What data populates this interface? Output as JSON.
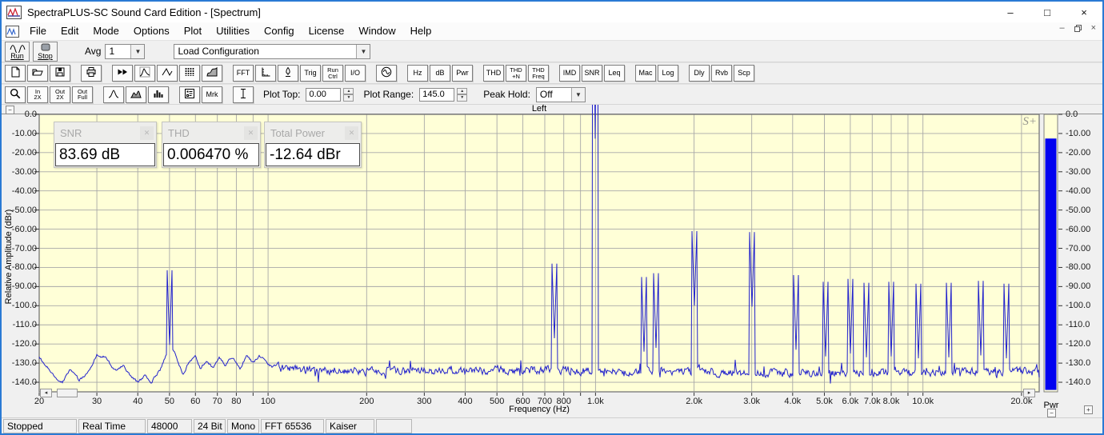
{
  "window": {
    "title": "SpectraPLUS-SC Sound Card Edition - [Spectrum]",
    "controls": [
      {
        "name": "minimize-button",
        "glyph": "–"
      },
      {
        "name": "maximize-button",
        "glyph": "□"
      },
      {
        "name": "close-button",
        "glyph": "×"
      }
    ]
  },
  "menu": {
    "items": [
      "File",
      "Edit",
      "Mode",
      "Options",
      "Plot",
      "Utilities",
      "Config",
      "License",
      "Window",
      "Help"
    ]
  },
  "toolbar_main": {
    "run_label": "Run",
    "stop_label": "Stop",
    "avg_label": "Avg",
    "avg_value": "1",
    "config_value": "Load Configuration"
  },
  "toolbar_icons": {
    "buttons": [
      {
        "name": "new-file-button",
        "icon": "doc"
      },
      {
        "name": "open-file-button",
        "icon": "folder"
      },
      {
        "name": "save-button",
        "icon": "floppy"
      },
      {
        "sep": true
      },
      {
        "name": "print-button",
        "icon": "printer"
      },
      {
        "sep": true
      },
      {
        "name": "fast-forward-button",
        "icon": "ffwd"
      },
      {
        "name": "spectrum-view-button",
        "icon": "spectrum"
      },
      {
        "name": "time-series-view-button",
        "icon": "waveform"
      },
      {
        "name": "spectrogram-view-button",
        "icon": "spectrogram"
      },
      {
        "name": "surface-view-button",
        "icon": "surface"
      },
      {
        "sep": true
      },
      {
        "name": "fft-settings-button",
        "label": "FFT"
      },
      {
        "name": "scaling-button",
        "icon": "ruler"
      },
      {
        "name": "calibration-button",
        "icon": "calib"
      },
      {
        "name": "trigger-button",
        "label": "Trig"
      },
      {
        "name": "run-control-button",
        "label": "Run\nCtrl"
      },
      {
        "name": "io-device-button",
        "label": "I/O"
      },
      {
        "sep": true
      },
      {
        "name": "signal-generator-button",
        "icon": "sine"
      },
      {
        "sep": true
      },
      {
        "name": "units-hz-button",
        "label": "Hz"
      },
      {
        "name": "units-db-button",
        "label": "dB"
      },
      {
        "name": "total-power-button",
        "label": "Pwr"
      },
      {
        "sep": true
      },
      {
        "name": "thd-button",
        "label": "THD"
      },
      {
        "name": "thd-plus-n-button",
        "label": "THD\n+N"
      },
      {
        "name": "thd-freq-button",
        "label": "THD\nFreq"
      },
      {
        "sep": true
      },
      {
        "name": "imd-button",
        "label": "IMD"
      },
      {
        "name": "snr-button",
        "label": "SNR"
      },
      {
        "name": "leq-button",
        "label": "Leq"
      },
      {
        "sep": true
      },
      {
        "name": "macro-button",
        "label": "Mac"
      },
      {
        "name": "log-button",
        "label": "Log"
      },
      {
        "sep": true
      },
      {
        "name": "delay-button",
        "label": "Dly"
      },
      {
        "name": "reverb-button",
        "label": "Rvb"
      },
      {
        "name": "scope-button",
        "label": "Scp"
      }
    ]
  },
  "toolbar_plot": {
    "buttons": [
      {
        "name": "zoom-button",
        "icon": "magnifier"
      },
      {
        "name": "zoom-in-2x-button",
        "label": "In\n2X"
      },
      {
        "name": "zoom-out-2x-button",
        "label": "Out\n2X"
      },
      {
        "name": "zoom-out-full-button",
        "label": "Out\nFull"
      },
      {
        "sep": true
      },
      {
        "name": "line-plot-button",
        "icon": "peak"
      },
      {
        "name": "filled-plot-button",
        "icon": "fillcurve"
      },
      {
        "name": "bar-plot-button",
        "icon": "bars"
      },
      {
        "sep": true
      },
      {
        "name": "legend-button",
        "icon": "legend"
      },
      {
        "name": "marker-button",
        "label": "Mrk"
      },
      {
        "sep": true
      },
      {
        "name": "cursor-button",
        "icon": "ibeam"
      }
    ],
    "plot_top_label": "Plot Top:",
    "plot_top_value": "0.00",
    "plot_range_label": "Plot Range:",
    "plot_range_value": "145.0",
    "peak_hold_label": "Peak Hold:",
    "peak_hold_value": "Off"
  },
  "overlays": [
    {
      "name": "snr-readout",
      "title": "SNR",
      "value": "83.69 dB"
    },
    {
      "name": "thd-readout",
      "title": "THD",
      "value": "0.006470 %"
    },
    {
      "name": "total-power-readout",
      "title": "Total Power",
      "value": "-12.64 dBr"
    }
  ],
  "plot": {
    "channel_label": "Left",
    "watermark": "S+",
    "ylabel": "Relative Amplitude (dBr)",
    "xlabel": "Frequency (Hz)",
    "pwr_label": "Pwr"
  },
  "chart_data": {
    "type": "line",
    "title": "Left",
    "xlabel": "Frequency (Hz)",
    "ylabel": "Relative Amplitude (dBr)",
    "xscale": "log",
    "xlim": [
      20,
      22500
    ],
    "ylim": [
      -145,
      0
    ],
    "grid": true,
    "legend_position": "none",
    "y_ticks": [
      {
        "v": 0,
        "t": "0.0"
      },
      {
        "v": -10,
        "t": "-10.00"
      },
      {
        "v": -20,
        "t": "-20.00"
      },
      {
        "v": -30,
        "t": "-30.00"
      },
      {
        "v": -40,
        "t": "-40.00"
      },
      {
        "v": -50,
        "t": "-50.00"
      },
      {
        "v": -60,
        "t": "-60.00"
      },
      {
        "v": -70,
        "t": "-70.00"
      },
      {
        "v": -80,
        "t": "-80.00"
      },
      {
        "v": -90,
        "t": "-90.00"
      },
      {
        "v": -100,
        "t": "-100.0"
      },
      {
        "v": -110,
        "t": "-110.0"
      },
      {
        "v": -120,
        "t": "-120.0"
      },
      {
        "v": -130,
        "t": "-130.0"
      },
      {
        "v": -140,
        "t": "-140.0"
      }
    ],
    "x_ticks": [
      {
        "v": 20,
        "t": "20"
      },
      {
        "v": 30,
        "t": "30"
      },
      {
        "v": 40,
        "t": "40"
      },
      {
        "v": 50,
        "t": "50"
      },
      {
        "v": 60,
        "t": "60"
      },
      {
        "v": 70,
        "t": "70"
      },
      {
        "v": 80,
        "t": "80"
      },
      {
        "v": 100,
        "t": "100"
      },
      {
        "v": 200,
        "t": "200"
      },
      {
        "v": 300,
        "t": "300"
      },
      {
        "v": 400,
        "t": "400"
      },
      {
        "v": 500,
        "t": "500"
      },
      {
        "v": 600,
        "t": "600"
      },
      {
        "v": 700,
        "t": "700"
      },
      {
        "v": 800,
        "t": "800"
      },
      {
        "v": 1000,
        "t": "1.0k"
      },
      {
        "v": 2000,
        "t": "2.0k"
      },
      {
        "v": 3000,
        "t": "3.0k"
      },
      {
        "v": 4000,
        "t": "4.0k"
      },
      {
        "v": 5000,
        "t": "5.0k"
      },
      {
        "v": 6000,
        "t": "6.0k"
      },
      {
        "v": 7000,
        "t": "7.0k"
      },
      {
        "v": 8000,
        "t": "8.0k"
      },
      {
        "v": 10000,
        "t": "10.0k"
      },
      {
        "v": 20000,
        "t": "20.0k"
      }
    ],
    "x_gridlines": [
      20,
      30,
      40,
      50,
      60,
      70,
      80,
      90,
      100,
      200,
      300,
      400,
      500,
      600,
      700,
      800,
      900,
      1000,
      2000,
      3000,
      4000,
      5000,
      6000,
      7000,
      8000,
      9000,
      10000,
      20000
    ],
    "main_tone_hz": 1000,
    "peaks": [
      [
        50,
        -120.5
      ],
      [
        747,
        -117
      ],
      [
        1000,
        -12.7
      ],
      [
        1410,
        -124
      ],
      [
        1530,
        -122
      ],
      [
        2000,
        -100
      ],
      [
        3000,
        -100.5
      ],
      [
        4100,
        -123
      ],
      [
        5050,
        -126.5
      ],
      [
        6000,
        -125
      ],
      [
        6700,
        -127
      ],
      [
        8000,
        -126.5
      ],
      [
        9700,
        -127.5
      ],
      [
        12000,
        -127
      ],
      [
        15000,
        -126
      ],
      [
        18000,
        -127.5
      ]
    ],
    "lf_envelope": [
      [
        20,
        -127
      ],
      [
        22,
        -136
      ],
      [
        23.5,
        -140
      ],
      [
        25,
        -133
      ],
      [
        26.5,
        -139
      ],
      [
        28.5,
        -134
      ],
      [
        30,
        -126
      ],
      [
        32,
        -127
      ],
      [
        34,
        -134
      ],
      [
        36,
        -131
      ],
      [
        38,
        -137
      ],
      [
        40,
        -140
      ],
      [
        42,
        -137
      ],
      [
        44,
        -140
      ],
      [
        47,
        -133
      ],
      [
        50,
        -120.5
      ],
      [
        52,
        -125
      ],
      [
        55,
        -136
      ],
      [
        57,
        -130
      ],
      [
        60,
        -127
      ],
      [
        62,
        -133
      ],
      [
        65,
        -128
      ],
      [
        68,
        -133
      ],
      [
        71,
        -127
      ],
      [
        74,
        -131
      ],
      [
        78,
        -127
      ],
      [
        82,
        -133
      ],
      [
        86,
        -126
      ],
      [
        90,
        -130
      ],
      [
        94,
        -126
      ],
      [
        98,
        -129
      ],
      [
        103,
        -132
      ],
      [
        108,
        -130
      ]
    ],
    "noise_floor": [
      [
        110,
        -133
      ],
      [
        150,
        -134
      ],
      [
        200,
        -134.5
      ],
      [
        400,
        -134
      ],
      [
        700,
        -133.5
      ],
      [
        1000,
        -134
      ],
      [
        1500,
        -134
      ],
      [
        2000,
        -134.5
      ],
      [
        3000,
        -135
      ],
      [
        5000,
        -135
      ],
      [
        8000,
        -135
      ],
      [
        12000,
        -134.5
      ],
      [
        22500,
        -134
      ]
    ],
    "noise_jitter_db": 3.5,
    "readouts": {
      "snr": "83.69 dB",
      "thd": "0.006470 %",
      "total_power": "-12.64 dBr"
    },
    "power_bar": {
      "top_dbr": -12.64,
      "bottom_dbr": -144
    }
  },
  "status_bar": {
    "panels": [
      "Stopped",
      "Real Time",
      "48000 Hz",
      "24 Bit",
      "Mono",
      "FFT 65536 pts",
      "Kaiser",
      ""
    ]
  },
  "colors": {
    "window_border": "#2a7ad4",
    "plot_bg": "#ffffd7",
    "grid": "#a8a8a8",
    "trace": "#2222cc",
    "power_bar": "#0202f0",
    "axis_border": "#7f7f7f"
  }
}
